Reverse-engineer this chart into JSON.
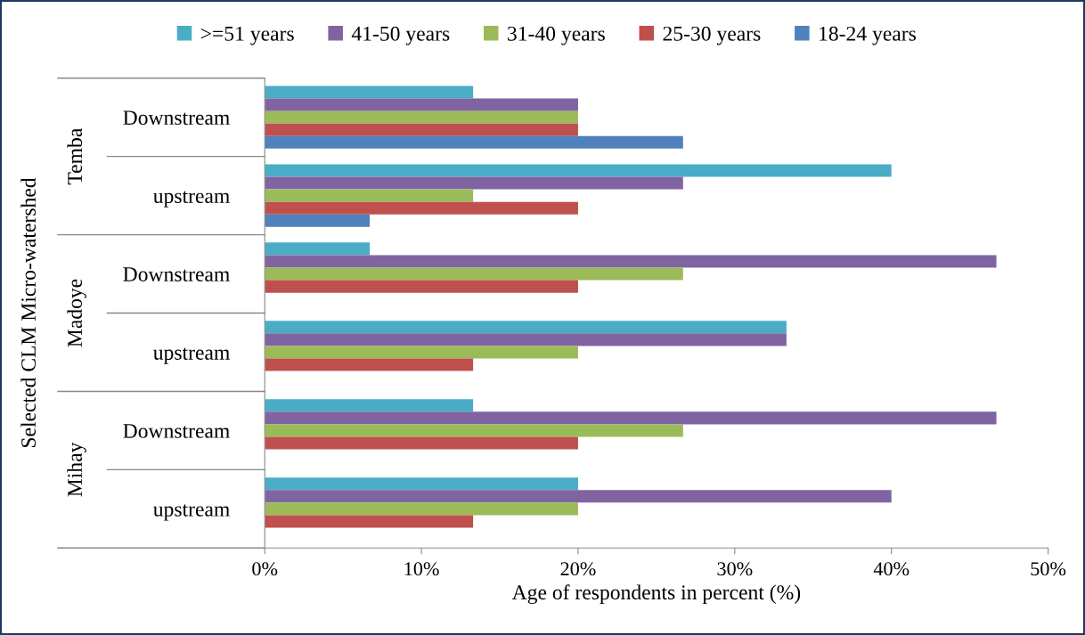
{
  "chart_data": {
    "type": "bar",
    "orientation": "horizontal",
    "xlabel": "Age of respondents in percent (%)",
    "ylabel": "Selected CLM Micro-watershed",
    "categories": [
      "Downstream",
      "upstream",
      "Downstream",
      "upstream",
      "Downstream",
      "upstream"
    ],
    "annotations": [
      "Temba",
      "Madoye",
      "Mihay"
    ],
    "series": [
      {
        "name": ">=51 years",
        "color": "#4bacc6",
        "values": [
          13.3,
          40,
          6.7,
          33.3,
          13.3,
          20
        ]
      },
      {
        "name": "41-50 years",
        "color": "#8064a2",
        "values": [
          20,
          26.7,
          46.7,
          33.3,
          46.7,
          40
        ]
      },
      {
        "name": "31-40 years",
        "color": "#9bbb59",
        "values": [
          20,
          13.3,
          26.7,
          20,
          26.7,
          20
        ]
      },
      {
        "name": "25-30 years",
        "color": "#c0504d",
        "values": [
          20,
          20,
          20,
          13.3,
          20,
          13.3
        ]
      },
      {
        "name": "18-24 years",
        "color": "#4f81bd",
        "values": [
          26.7,
          6.7,
          null,
          null,
          null,
          null
        ]
      }
    ],
    "xlim": [
      0,
      50
    ],
    "xticks": [
      {
        "value": 0,
        "label": "0%"
      },
      {
        "value": 10,
        "label": "10%"
      },
      {
        "value": 20,
        "label": "20%"
      },
      {
        "value": 30,
        "label": "30%"
      },
      {
        "value": 40,
        "label": "40%"
      },
      {
        "value": 50,
        "label": "50%"
      }
    ],
    "grid": false,
    "legend": "top"
  }
}
